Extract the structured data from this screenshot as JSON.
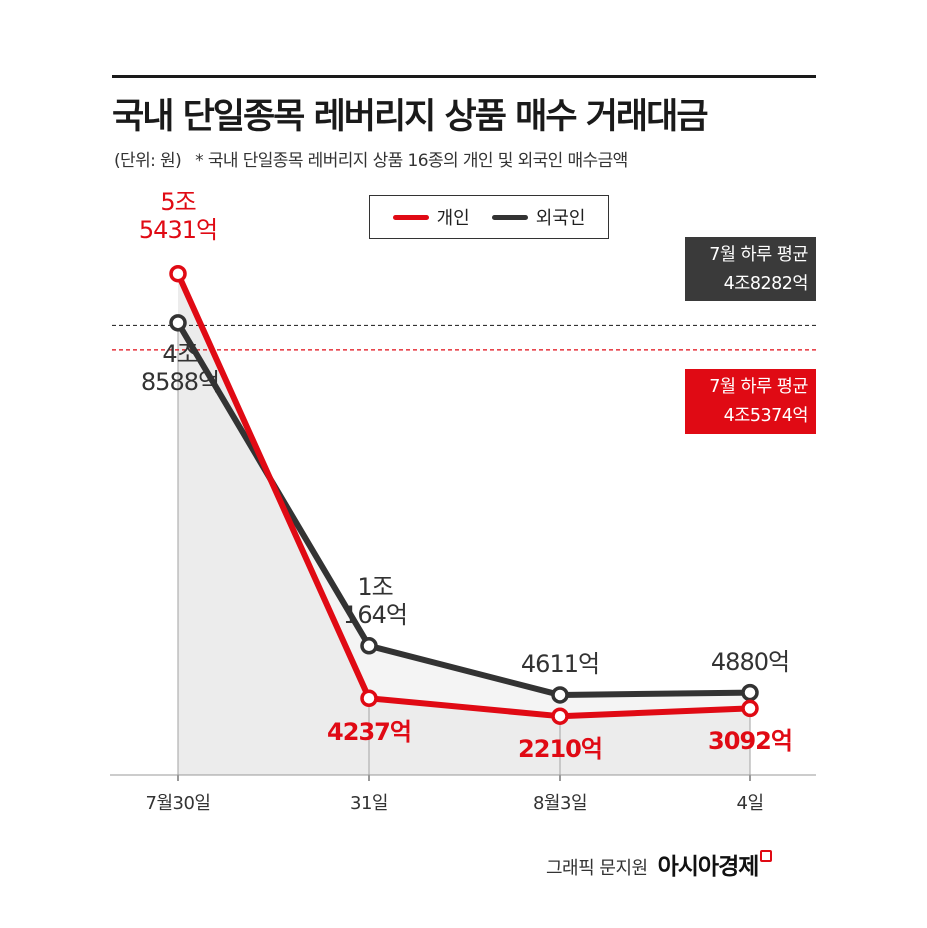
{
  "title": "국내 단일종목 레버리지 상품 매수 거래대금",
  "subtitle_unit": "(단위: 원)",
  "subtitle_note": "* 국내 단일종목 레버리지 상품 16종의 개인 및 외국인 매수금액",
  "credit": "그래픽 문지원",
  "brand": "아시아경제",
  "colors": {
    "individual": "#e00a14",
    "foreign": "#333333",
    "area": "#ececec"
  },
  "chart_data": {
    "type": "line",
    "categories": [
      "7월30일",
      "31일",
      "8월3일",
      "4일"
    ],
    "unit": "억원",
    "series": [
      {
        "name": "개인",
        "values": [
          54431,
          4237,
          2210,
          3092
        ],
        "labels": [
          [
            "5조",
            "5431억"
          ],
          [
            "4237억"
          ],
          [
            "2210억"
          ],
          [
            "3092억"
          ]
        ]
      },
      {
        "name": "외국인",
        "values": [
          48588,
          10164,
          4611,
          4880
        ],
        "labels": [
          [
            "4조",
            "8588억"
          ],
          [
            "1조",
            "164억"
          ],
          [
            "4611억"
          ],
          [
            "4880억"
          ]
        ]
      }
    ],
    "reference_lines": [
      {
        "series": "외국인",
        "label": "7월 하루 평균",
        "value_label": "4조8282억",
        "value": 48282
      },
      {
        "series": "개인",
        "label": "7월 하루 평균",
        "value_label": "4조5374억",
        "value": 45374
      }
    ],
    "legend_position": "top-center",
    "grid": false
  }
}
